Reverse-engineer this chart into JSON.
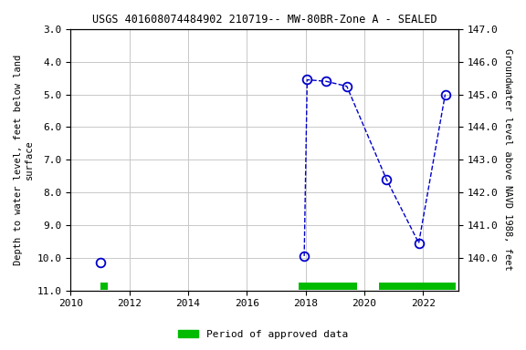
{
  "title": "USGS 401608074484902 210719-- MW-80BR-Zone A - SEALED",
  "xlabel_years": [
    2010,
    2012,
    2014,
    2016,
    2018,
    2020,
    2022
  ],
  "isolated_x": [
    2011.0
  ],
  "isolated_y": [
    10.15
  ],
  "line_x": [
    2017.95,
    2018.05,
    2018.7,
    2019.4,
    2020.75,
    2021.85,
    2022.75
  ],
  "line_y": [
    9.95,
    4.55,
    4.6,
    4.75,
    7.6,
    9.55,
    5.0
  ],
  "y_left_min": 3.0,
  "y_left_max": 11.0,
  "y_left_ticks": [
    3.0,
    4.0,
    5.0,
    6.0,
    7.0,
    8.0,
    9.0,
    10.0,
    11.0
  ],
  "y_right_min": 139.0,
  "y_right_max": 147.0,
  "y_right_ticks": [
    140.0,
    141.0,
    142.0,
    143.0,
    144.0,
    145.0,
    146.0,
    147.0
  ],
  "ylabel_left": "Depth to water level, feet below land\nsurface",
  "ylabel_right": "Groundwater level above NAVD 1988, feet",
  "line_color": "#0000cc",
  "marker_color": "#0000cc",
  "grid_color": "#c8c8c8",
  "plot_bg_color": "#ffffff",
  "fig_bg_color": "#ffffff",
  "approved_segments": [
    {
      "xstart": 2011.0,
      "xend": 2011.25
    },
    {
      "xstart": 2017.75,
      "xend": 2019.75
    },
    {
      "xstart": 2020.5,
      "xend": 2023.1
    }
  ],
  "approved_color": "#00bb00",
  "approved_label": "Period of approved data",
  "x_min": 2010,
  "x_max": 2023.2
}
